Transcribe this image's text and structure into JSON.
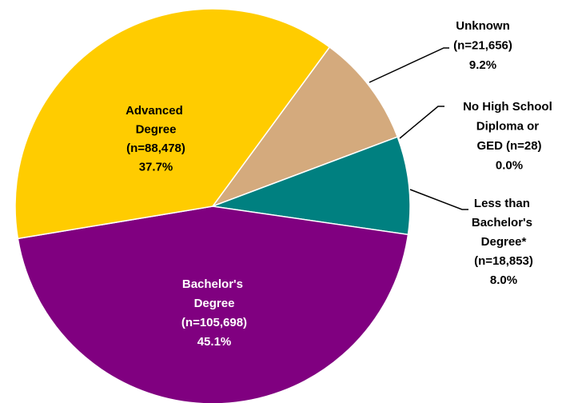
{
  "chart_data": {
    "type": "pie",
    "categories": [
      "Unknown",
      "No High School Diploma or GED",
      "Less than Bachelor's Degree*",
      "Bachelor's Degree",
      "Advanced Degree"
    ],
    "values": [
      9.2,
      0.0,
      8.0,
      45.1,
      37.7
    ],
    "value_labels": [
      "9.2%",
      "0.0%",
      "8.0%",
      "45.1%",
      "37.7%"
    ],
    "counts": [
      21656,
      28,
      18853,
      105698,
      88478
    ],
    "count_labels": [
      "(n=21,656)",
      "(n=28)",
      "(n=18,853)",
      "(n=105,698)",
      "(n=88,478)"
    ],
    "colors": [
      "#d4aa7d",
      "#999999",
      "#008080",
      "#800080",
      "#ffcc00"
    ]
  }
}
